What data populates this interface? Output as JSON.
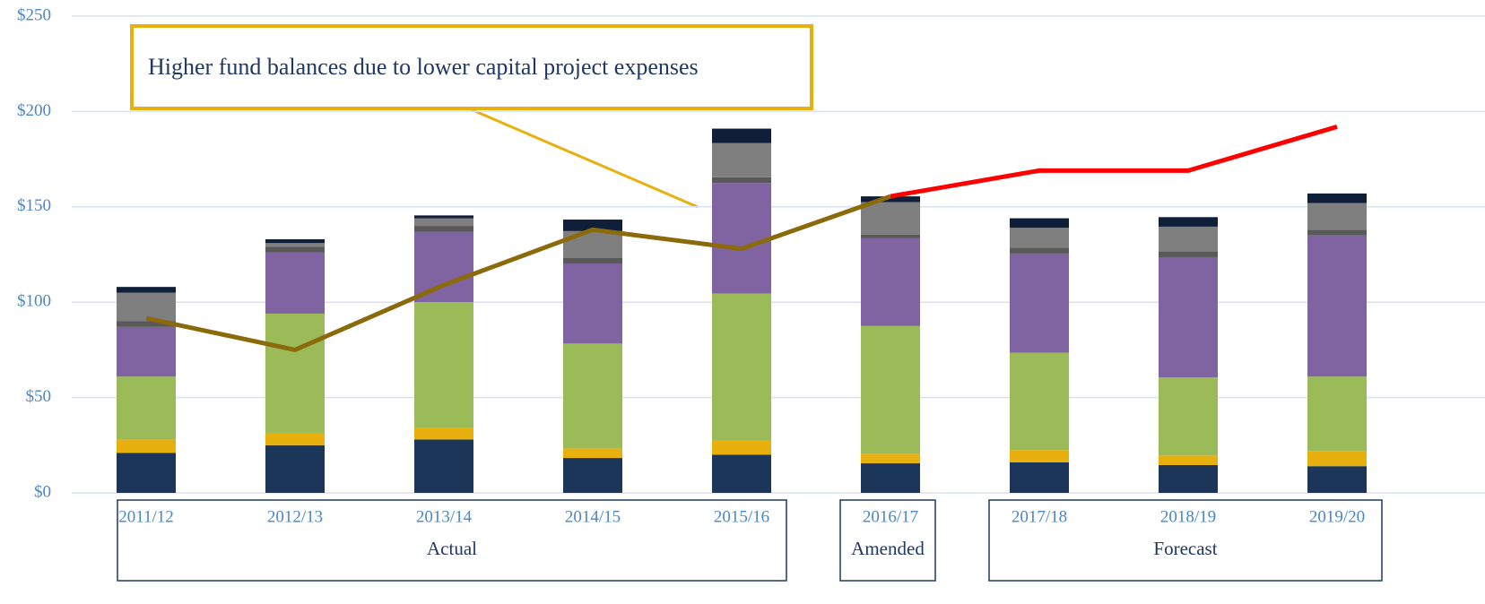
{
  "chart_data": {
    "type": "stacked_bar_line",
    "annotation": "Higher fund balances due to lower capital project expenses",
    "groups": [
      {
        "label": "Actual",
        "categories": [
          "2011/12",
          "2012/13",
          "2013/14",
          "2014/15",
          "2015/16"
        ]
      },
      {
        "label": "Amended",
        "categories": [
          "2016/17"
        ]
      },
      {
        "label": "Forecast",
        "categories": [
          "2017/18",
          "2018/19",
          "2019/20"
        ]
      }
    ],
    "ylim": [
      0,
      250
    ],
    "yticks": [
      {
        "value": 0,
        "label": "$0"
      },
      {
        "value": 50,
        "label": "$50"
      },
      {
        "value": 100,
        "label": "$100"
      },
      {
        "value": 150,
        "label": "$150"
      },
      {
        "value": 200,
        "label": "$200"
      },
      {
        "value": 250,
        "label": "$250"
      }
    ],
    "grid": true,
    "series": [
      {
        "color": "#1b3659",
        "values": [
          21,
          25,
          28,
          18.3,
          20,
          15.5,
          16,
          14.6,
          14
        ]
      },
      {
        "color": "#e8b00f",
        "values": [
          7,
          6.5,
          6,
          5,
          7.5,
          5,
          6.5,
          5,
          8
        ]
      },
      {
        "color": "#9bbb59",
        "values": [
          33,
          62.5,
          66,
          55,
          77,
          67,
          51,
          41,
          39
        ]
      },
      {
        "color": "#8064a2",
        "values": [
          26,
          32,
          37,
          42,
          58,
          46,
          52,
          63,
          74
        ]
      },
      {
        "color": "#595959",
        "values": [
          3,
          3,
          3,
          3,
          3,
          2,
          3,
          3,
          3
        ]
      },
      {
        "color": "#7f7f7f",
        "values": [
          15,
          2,
          4,
          14,
          18,
          17,
          10.5,
          13,
          14
        ]
      },
      {
        "color": "#0f1f3a",
        "values": [
          3,
          2,
          1.5,
          6,
          7.5,
          3,
          5,
          5,
          5
        ]
      }
    ],
    "lines": [
      {
        "color": "#8b6a0c",
        "values": [
          91.6,
          75,
          109,
          138,
          128,
          155.5,
          null,
          null,
          null
        ]
      },
      {
        "color": "#ff0000",
        "values": [
          null,
          null,
          null,
          null,
          null,
          155.5,
          169,
          169,
          192
        ]
      }
    ]
  }
}
